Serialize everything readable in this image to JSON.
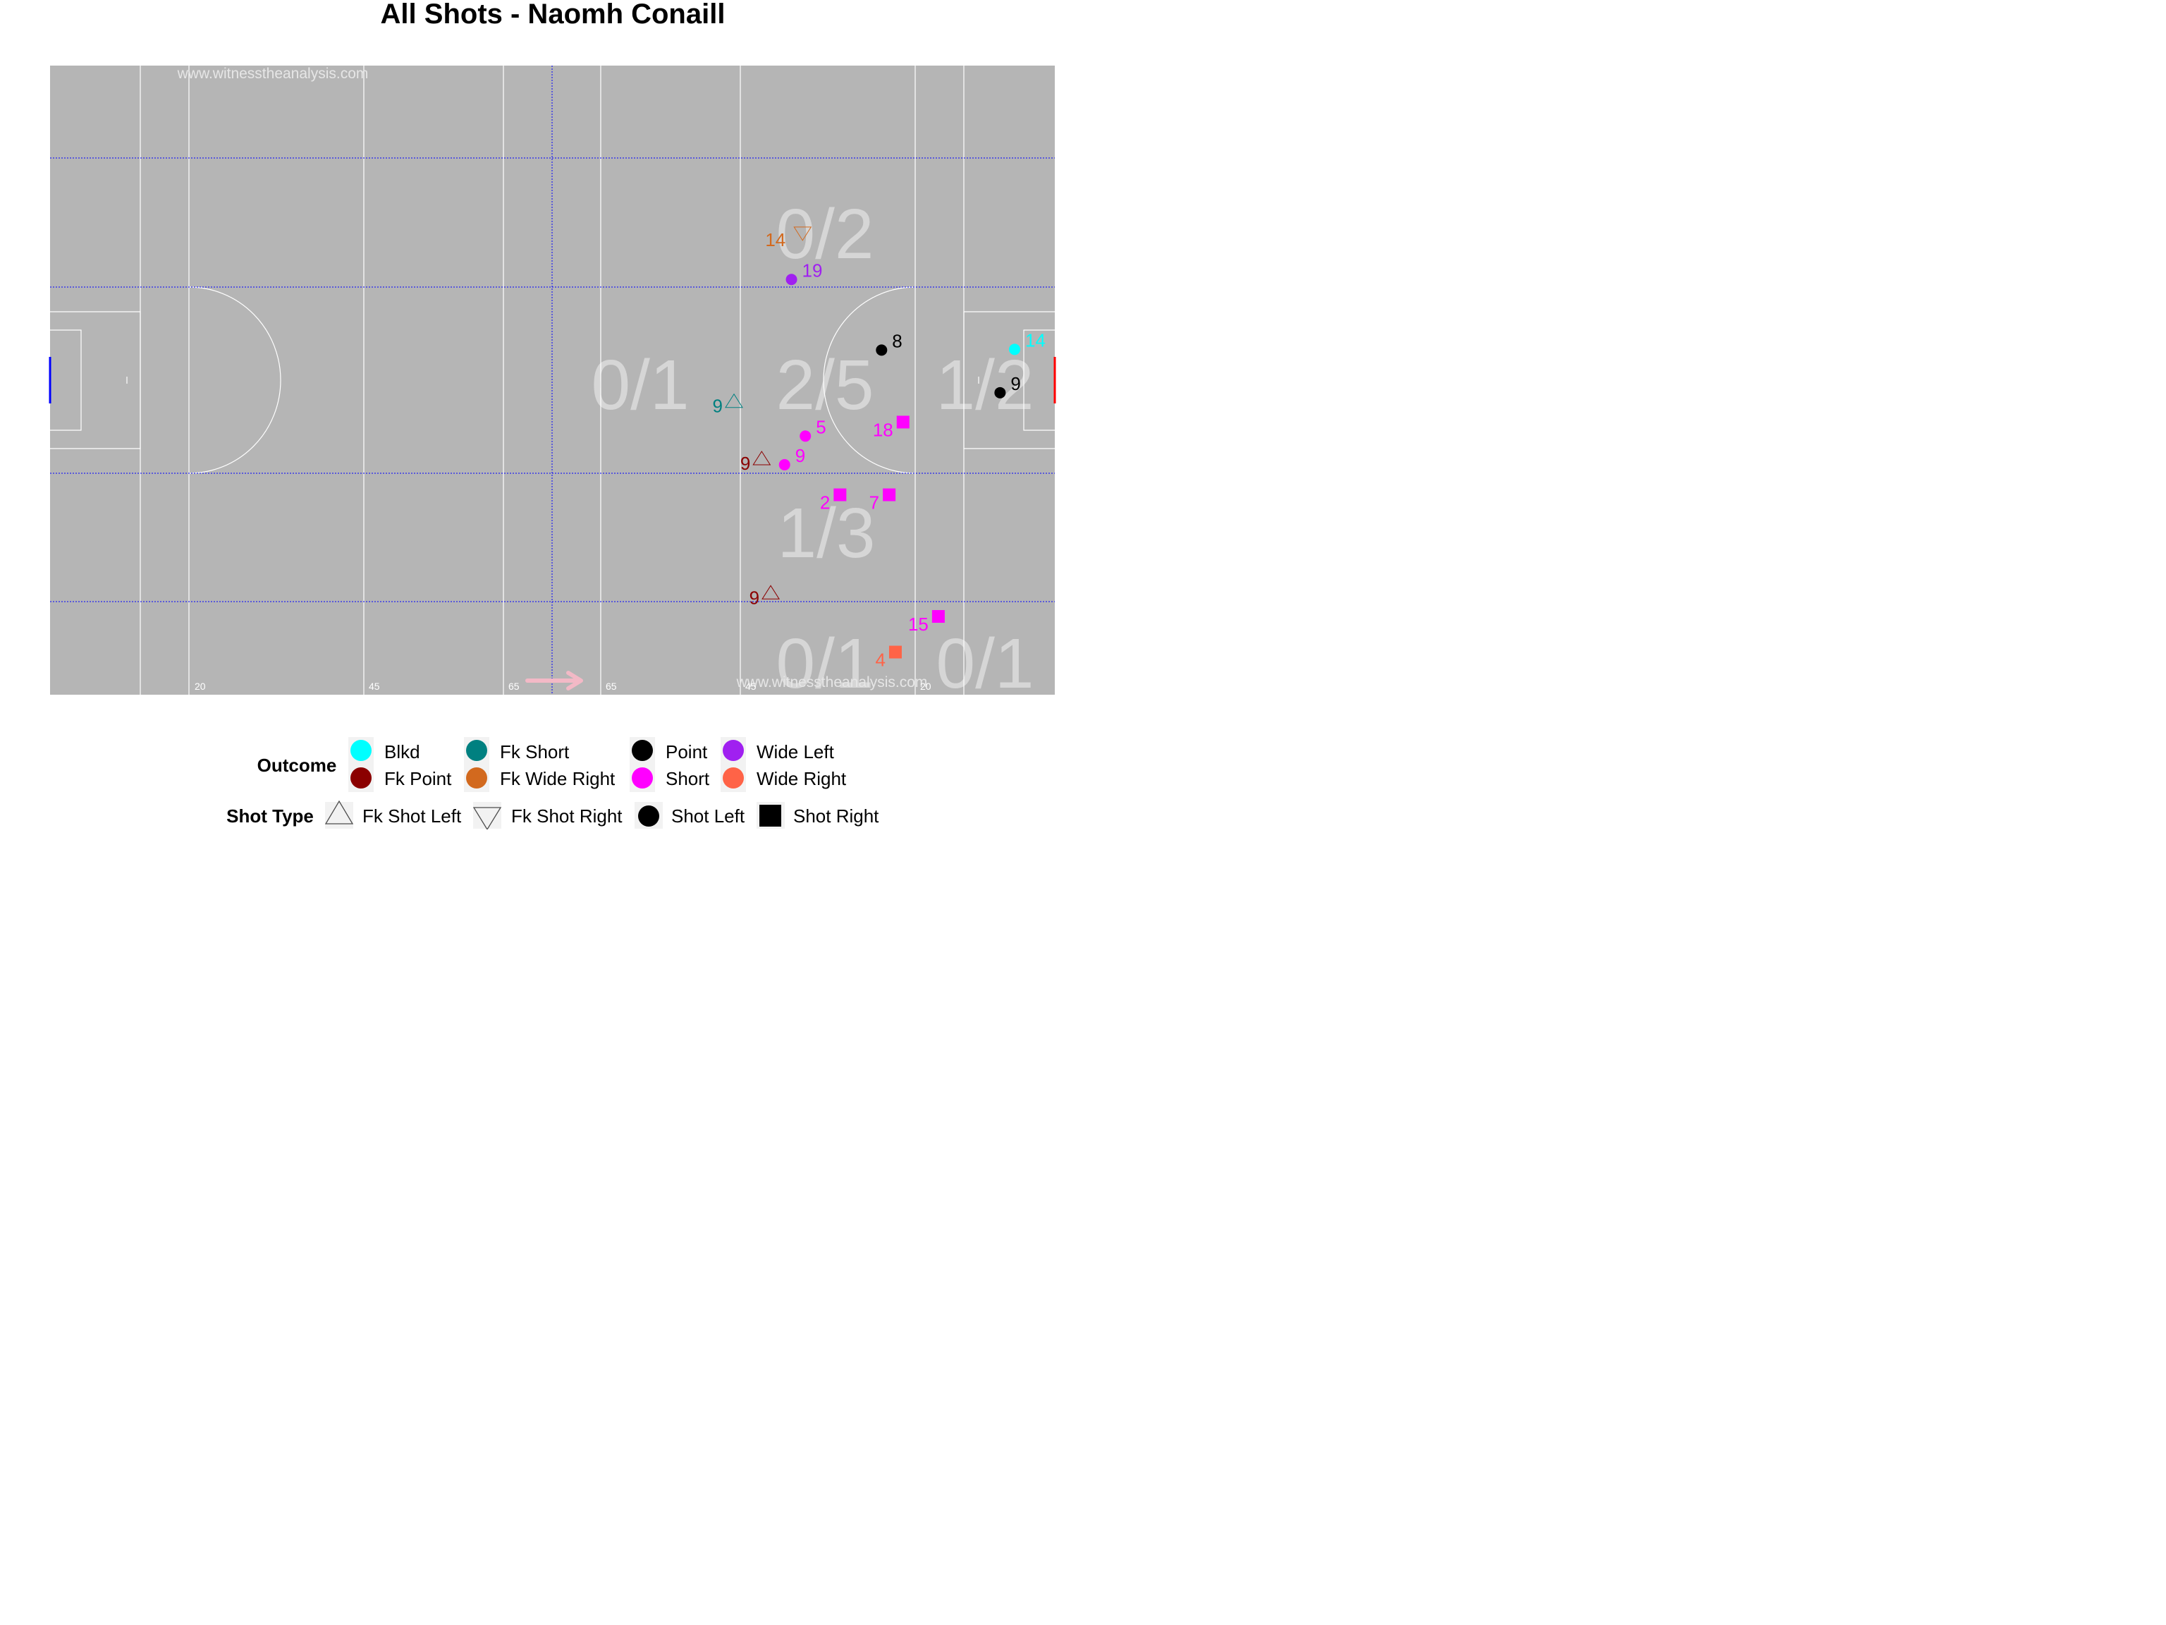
{
  "title": "All Shots - Naomh Conaill",
  "watermark": "www.witnesstheanalysis.com",
  "pitch": {
    "background": "#b5b5b5",
    "line_color": "#ffffff",
    "grid_color": "#0000ff",
    "attack_arrow_color": "#f3b9c6",
    "left_goal_color": "#0000ff",
    "right_goal_color": "#ff0000",
    "distance_labels": [
      "20",
      "45",
      "65",
      "65",
      "45",
      "20"
    ]
  },
  "zone_labels": [
    {
      "text": "0/2",
      "zone": "upper-central"
    },
    {
      "text": "0/1",
      "zone": "central-long"
    },
    {
      "text": "2/5",
      "zone": "central"
    },
    {
      "text": "1/2",
      "zone": "central-close"
    },
    {
      "text": "1/3",
      "zone": "lower-central"
    },
    {
      "text": "0/1",
      "zone": "lower-wide-central"
    },
    {
      "text": "0/1",
      "zone": "lower-wide-close"
    }
  ],
  "outcome_colors": {
    "Blkd": "#00ffff",
    "Fk Point": "#8b0000",
    "Fk Short": "#008080",
    "Fk Wide Right": "#d2691e",
    "Point": "#000000",
    "Short": "#ff00ff",
    "Wide Left": "#a020f0",
    "Wide Right": "#ff6347"
  },
  "chart_data": {
    "type": "scatter",
    "title": "All Shots - Naomh Conaill",
    "xlabel": "",
    "ylabel": "",
    "x_range": [
      0,
      145
    ],
    "y_range": [
      0,
      90
    ],
    "grid": true,
    "legend_position": "bottom",
    "points": [
      {
        "player": "14",
        "x": 108.6,
        "y": 66.0,
        "outcome": "Fk Wide Right",
        "shot_type": "Fk Shot Right"
      },
      {
        "player": "19",
        "x": 107.0,
        "y": 59.4,
        "outcome": "Wide Left",
        "shot_type": "Shot Left"
      },
      {
        "player": "8",
        "x": 120.0,
        "y": 49.3,
        "outcome": "Point",
        "shot_type": "Shot Left"
      },
      {
        "player": "14",
        "x": 139.2,
        "y": 49.4,
        "outcome": "Blkd",
        "shot_type": "Shot Left"
      },
      {
        "player": "9",
        "x": 137.1,
        "y": 43.2,
        "outcome": "Point",
        "shot_type": "Shot Left"
      },
      {
        "player": "9",
        "x": 98.7,
        "y": 42.0,
        "outcome": "Fk Short",
        "shot_type": "Fk Shot Left"
      },
      {
        "player": "18",
        "x": 123.1,
        "y": 39.0,
        "outcome": "Short",
        "shot_type": "Shot Right"
      },
      {
        "player": "5",
        "x": 109.0,
        "y": 37.0,
        "outcome": "Short",
        "shot_type": "Shot Left"
      },
      {
        "player": "9",
        "x": 102.7,
        "y": 33.8,
        "outcome": "Fk Point",
        "shot_type": "Fk Shot Left"
      },
      {
        "player": "9",
        "x": 106.0,
        "y": 32.9,
        "outcome": "Short",
        "shot_type": "Shot Left"
      },
      {
        "player": "2",
        "x": 114.0,
        "y": 28.6,
        "outcome": "Short",
        "shot_type": "Shot Right"
      },
      {
        "player": "7",
        "x": 121.1,
        "y": 28.6,
        "outcome": "Short",
        "shot_type": "Shot Right"
      },
      {
        "player": "9",
        "x": 104.0,
        "y": 14.6,
        "outcome": "Fk Point",
        "shot_type": "Fk Shot Left"
      },
      {
        "player": "15",
        "x": 128.2,
        "y": 11.2,
        "outcome": "Short",
        "shot_type": "Shot Right"
      },
      {
        "player": "4",
        "x": 122.0,
        "y": 6.1,
        "outcome": "Wide Right",
        "shot_type": "Shot Right"
      }
    ]
  },
  "legend": {
    "outcome_title": "Outcome",
    "outcome_items": [
      "Blkd",
      "Fk Point",
      "Fk Short",
      "Fk Wide Right",
      "Point",
      "Short",
      "Wide Left",
      "Wide Right"
    ],
    "shot_type_title": "Shot Type",
    "shot_type_items": [
      {
        "label": "Fk Shot Left",
        "icon": "triangle-up"
      },
      {
        "label": "Fk Shot Right",
        "icon": "triangle-down"
      },
      {
        "label": "Shot Left",
        "icon": "circle"
      },
      {
        "label": "Shot Right",
        "icon": "square"
      }
    ]
  }
}
